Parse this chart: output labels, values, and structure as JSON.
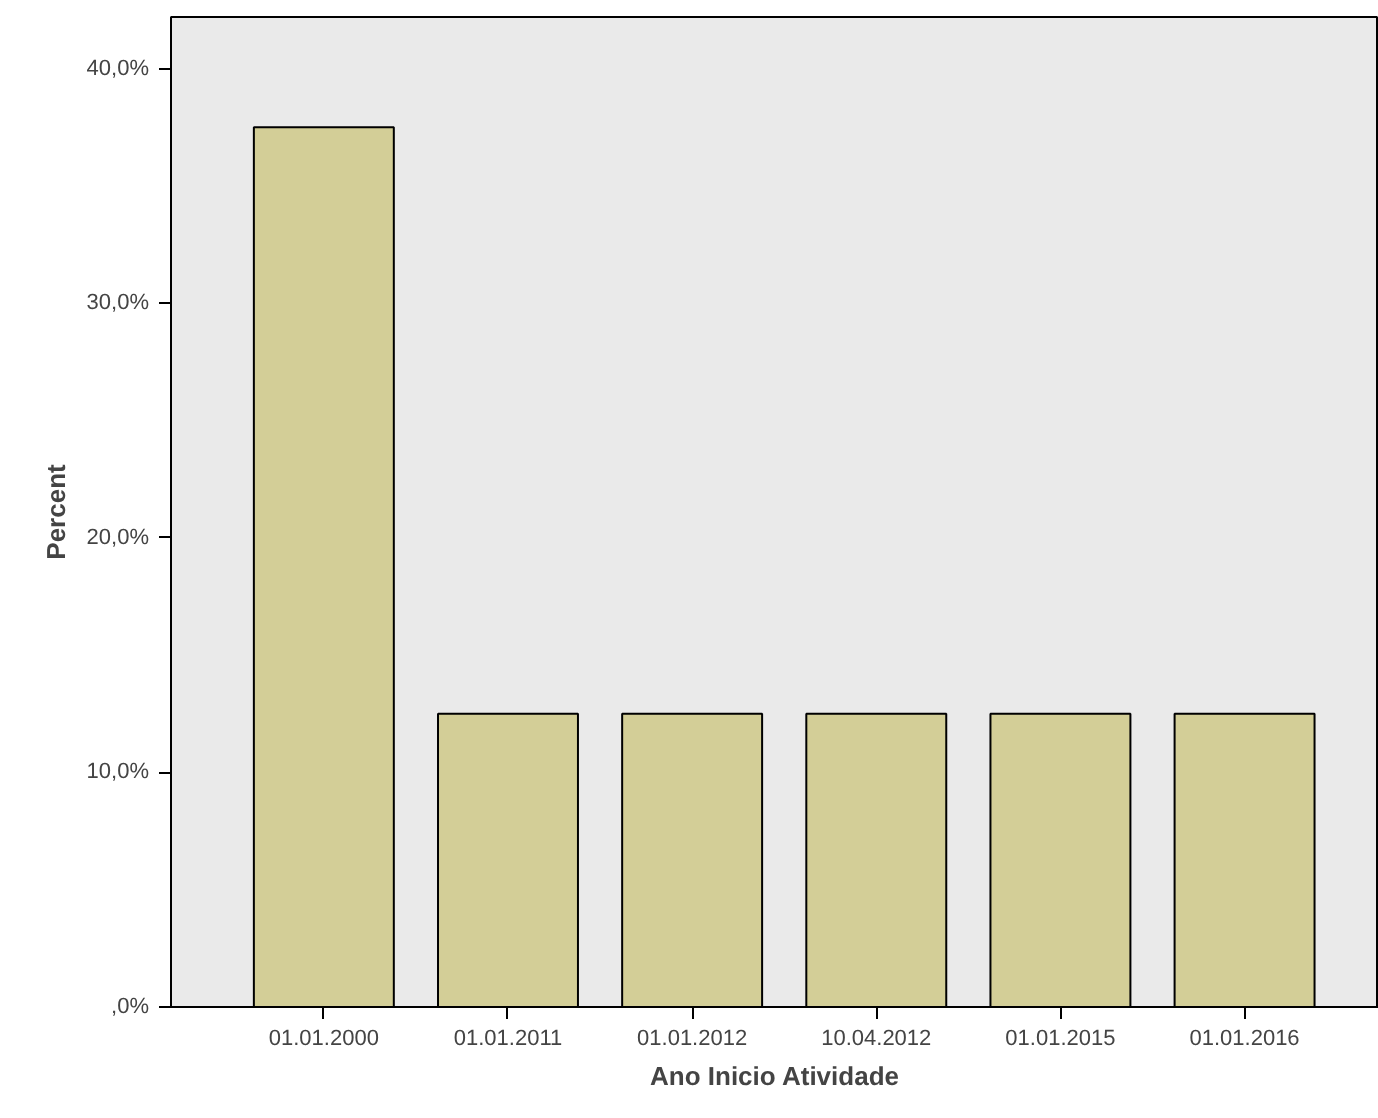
{
  "chart_data": {
    "type": "bar",
    "xlabel": "Ano Inicio Atividade",
    "ylabel": "Percent",
    "categories": [
      "01.01.2000",
      "01.01.2011",
      "01.01.2012",
      "10.04.2012",
      "01.01.2015",
      "01.01.2016"
    ],
    "values": [
      37.5,
      12.5,
      12.5,
      12.5,
      12.5,
      12.5
    ],
    "color": "#d3ce97",
    "ylim": [
      0,
      42.2
    ],
    "yticks": [
      {
        "value": 0,
        "label": ",0%"
      },
      {
        "value": 10,
        "label": "10,0%"
      },
      {
        "value": 20,
        "label": "20,0%"
      },
      {
        "value": 30,
        "label": "30,0%"
      },
      {
        "value": 40,
        "label": "40,0%"
      }
    ],
    "grid": false
  }
}
